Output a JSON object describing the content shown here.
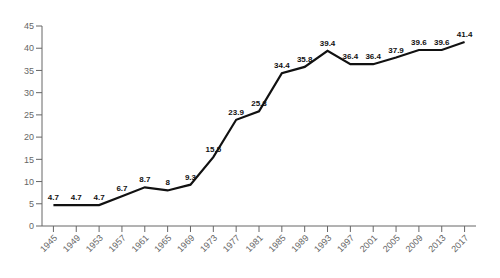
{
  "chart_data": {
    "type": "line",
    "x": [
      1945,
      1949,
      1953,
      1957,
      1961,
      1965,
      1969,
      1973,
      1977,
      1981,
      1985,
      1989,
      1993,
      1997,
      2001,
      2005,
      2009,
      2013,
      2017
    ],
    "values": [
      4.7,
      4.7,
      4.7,
      6.7,
      8.7,
      8.0,
      9.3,
      15.5,
      23.9,
      25.8,
      34.4,
      35.8,
      39.4,
      36.4,
      36.4,
      37.9,
      39.6,
      39.6,
      41.4
    ],
    "color": "#111111",
    "xlim": [
      1943,
      2019
    ],
    "xticks": [
      1945,
      1949,
      1953,
      1957,
      1961,
      1965,
      1969,
      1973,
      1977,
      1981,
      1985,
      1989,
      1993,
      1997,
      2001,
      2005,
      2009,
      2013,
      2017
    ],
    "ylim": [
      0,
      45
    ],
    "yticks": [
      0,
      5,
      10,
      15,
      20,
      25,
      30,
      35,
      40,
      45
    ],
    "grid": false,
    "data_labels": true
  }
}
